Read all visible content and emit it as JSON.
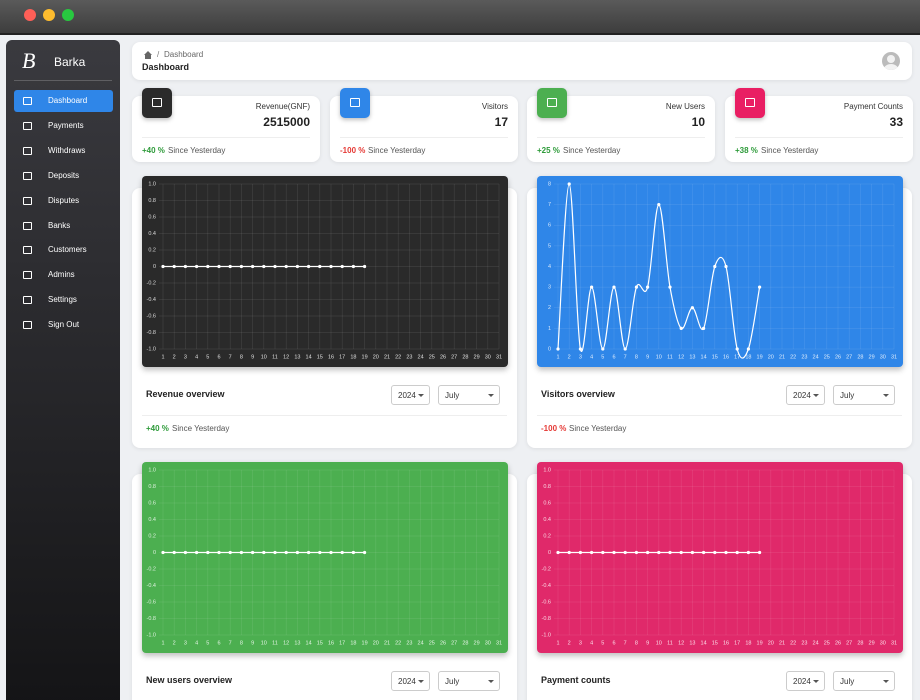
{
  "sidebar": {
    "logo": "B",
    "brand": "Barka",
    "menu": [
      "Dashboard",
      "Payments",
      "Withdraws",
      "Deposits",
      "Disputes",
      "Banks",
      "Customers",
      "Admins",
      "Settings",
      "Sign Out"
    ],
    "active": 0
  },
  "header": {
    "breadcrumb": "Dashboard",
    "separator": "/",
    "title": "Dashboard"
  },
  "stats": [
    {
      "label": "Revenue(GNF)",
      "value": 2515000,
      "change": "+40 %",
      "note": "Since Yesterday",
      "color": "#2b2b2b"
    },
    {
      "label": "Visitors",
      "value": 17,
      "change": "-100 %",
      "note": "Since Yesterday",
      "color": "#2f86e8"
    },
    {
      "label": "New Users",
      "value": 10,
      "change": "+25 %",
      "note": "Since Yesterday",
      "color": "#4caf50"
    },
    {
      "label": "Payment Counts",
      "value": 33,
      "change": "+38 %",
      "note": "Since Yesterday",
      "color": "#e91e63"
    }
  ],
  "charts": [
    {
      "type": "line",
      "title": "Revenue overview",
      "background": "#2a2a2a",
      "color": "#ffffff",
      "categories": [
        "1",
        "2",
        "3",
        "4",
        "5",
        "6",
        "7",
        "8",
        "9",
        "10",
        "11",
        "12",
        "13",
        "14",
        "15",
        "16",
        "17",
        "18",
        "19",
        "20",
        "21",
        "22",
        "23",
        "24",
        "25",
        "26",
        "27",
        "28",
        "29",
        "30",
        "31"
      ],
      "values": [
        0,
        0,
        0,
        0,
        0,
        0,
        0,
        0,
        0,
        0,
        0,
        0,
        0,
        0,
        0,
        0,
        0,
        0,
        0,
        null,
        null,
        null,
        null,
        null,
        null,
        null,
        null,
        null,
        null,
        null,
        null
      ],
      "ylim": [
        -1,
        1
      ],
      "yticks": [
        {
          "value": -1,
          "label": "-1.0"
        },
        -0.8,
        -0.6,
        -0.4,
        -0.2,
        0,
        0.2,
        0.4,
        0.6,
        0.8,
        {
          "value": 1,
          "label": "1.0"
        }
      ],
      "grid": true,
      "year": "2024",
      "month": "July",
      "change": "+40 %",
      "note": "Since Yesterday"
    },
    {
      "type": "line",
      "title": "Visitors overview",
      "background": "#2f86e8",
      "color": "#ffffff",
      "categories": [
        "1",
        "2",
        "3",
        "4",
        "5",
        "6",
        "7",
        "8",
        "9",
        "10",
        "11",
        "12",
        "13",
        "14",
        "15",
        "16",
        "17",
        "18",
        "19",
        "20",
        "21",
        "22",
        "23",
        "24",
        "25",
        "26",
        "27",
        "28",
        "29",
        "30",
        "31"
      ],
      "values": [
        0,
        8,
        0,
        3,
        0,
        3,
        0,
        3,
        3,
        7,
        3,
        1,
        2,
        1,
        4,
        4,
        0,
        0,
        3,
        null,
        null,
        null,
        null,
        null,
        null,
        null,
        null,
        null,
        null,
        null,
        null
      ],
      "ylim": [
        0,
        8
      ],
      "yticks": [
        0,
        1,
        2,
        3,
        4,
        5,
        6,
        7,
        8
      ],
      "grid": true,
      "year": "2024",
      "month": "July",
      "change": "-100 %",
      "note": "Since Yesterday"
    },
    {
      "type": "line",
      "title": "New users overview",
      "background": "#4caf50",
      "color": "#ffffff",
      "categories": [
        "1",
        "2",
        "3",
        "4",
        "5",
        "6",
        "7",
        "8",
        "9",
        "10",
        "11",
        "12",
        "13",
        "14",
        "15",
        "16",
        "17",
        "18",
        "19",
        "20",
        "21",
        "22",
        "23",
        "24",
        "25",
        "26",
        "27",
        "28",
        "29",
        "30",
        "31"
      ],
      "values": [
        0,
        0,
        0,
        0,
        0,
        0,
        0,
        0,
        0,
        0,
        0,
        0,
        0,
        0,
        0,
        0,
        0,
        0,
        0,
        null,
        null,
        null,
        null,
        null,
        null,
        null,
        null,
        null,
        null,
        null,
        null
      ],
      "ylim": [
        -1,
        1
      ],
      "yticks": [
        {
          "value": -1,
          "label": "-1.0"
        },
        -0.8,
        -0.6,
        -0.4,
        -0.2,
        0,
        0.2,
        0.4,
        0.6,
        0.8,
        {
          "value": 1,
          "label": "1.0"
        }
      ],
      "grid": true,
      "year": "2024",
      "month": "July"
    },
    {
      "type": "line",
      "title": "Payment counts",
      "background": "#e0296a",
      "color": "#ffffff",
      "categories": [
        "1",
        "2",
        "3",
        "4",
        "5",
        "6",
        "7",
        "8",
        "9",
        "10",
        "11",
        "12",
        "13",
        "14",
        "15",
        "16",
        "17",
        "18",
        "19",
        "20",
        "21",
        "22",
        "23",
        "24",
        "25",
        "26",
        "27",
        "28",
        "29",
        "30",
        "31"
      ],
      "values": [
        0,
        0,
        0,
        0,
        0,
        0,
        0,
        0,
        0,
        0,
        0,
        0,
        0,
        0,
        0,
        0,
        0,
        0,
        0,
        null,
        null,
        null,
        null,
        null,
        null,
        null,
        null,
        null,
        null,
        null,
        null
      ],
      "ylim": [
        -1,
        1
      ],
      "yticks": [
        {
          "value": -1,
          "label": "-1.0"
        },
        -0.8,
        -0.6,
        -0.4,
        -0.2,
        0,
        0.2,
        0.4,
        0.6,
        0.8,
        {
          "value": 1,
          "label": "1.0"
        }
      ],
      "grid": true,
      "year": "2024",
      "month": "July"
    }
  ]
}
